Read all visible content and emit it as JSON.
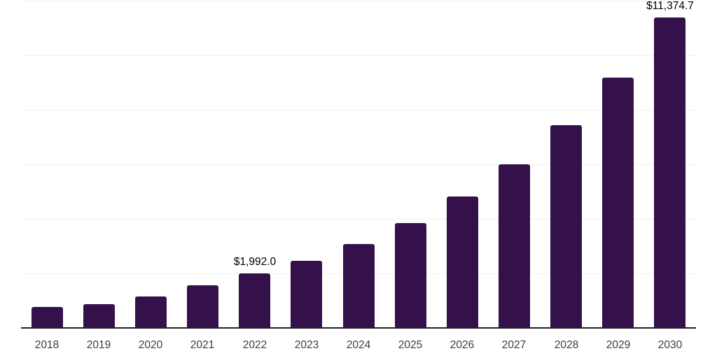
{
  "chart_data": {
    "type": "bar",
    "title": "",
    "xlabel": "",
    "ylabel": "",
    "legend": "none",
    "categories": [
      "2018",
      "2019",
      "2020",
      "2021",
      "2022",
      "2023",
      "2024",
      "2025",
      "2026",
      "2027",
      "2028",
      "2029",
      "2030"
    ],
    "values": [
      770,
      870,
      1155,
      1555,
      1992.0,
      2465,
      3080,
      3850,
      4810,
      6000,
      7430,
      9190,
      11374.7
    ],
    "value_labels": [
      "",
      "",
      "",
      "",
      "$1,992.0",
      "",
      "",
      "",
      "",
      "",
      "",
      "",
      "$11,374.7"
    ],
    "ylim": [
      0,
      12000
    ],
    "gridline_step": 2000,
    "grid": "horizontal",
    "y_tick_labels_visible": false,
    "colors": {
      "bar": "#35114B",
      "axis_line": "#212121",
      "gridline": "#F1F1F3",
      "value_label_text": "#000000",
      "tick_label_text": "#3C3C3C",
      "background": "#FFFFFF"
    }
  }
}
